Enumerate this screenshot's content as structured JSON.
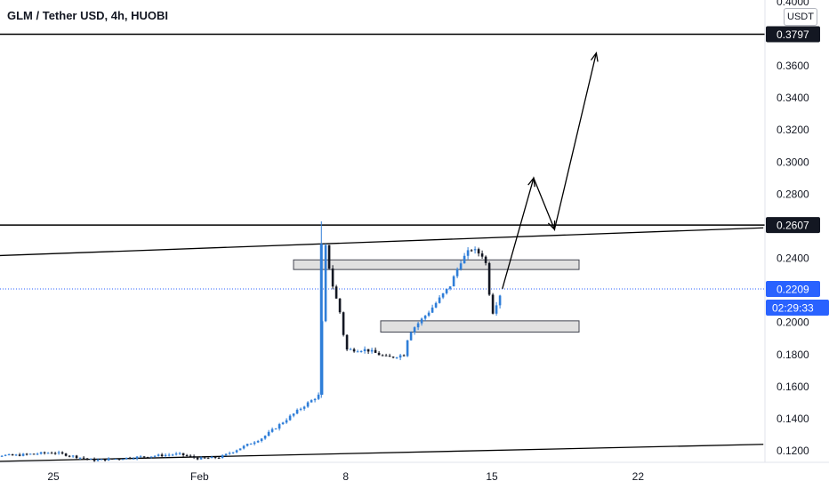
{
  "header": {
    "title": "GLM / Tether USD, 4h, HUOBI",
    "currency": "USDT"
  },
  "colors": {
    "up": "#2f7ed8",
    "down": "#131722",
    "accent": "#2962ff",
    "line": "#000000",
    "zone_fill": "#e0e0e0"
  },
  "chart_data": {
    "type": "candlestick",
    "title": "GLM / Tether USD, 4h, HUOBI",
    "y_axis": {
      "ticks": [
        "0.4000",
        "0.3600",
        "0.3400",
        "0.3200",
        "0.3000",
        "0.2800",
        "0.2400",
        "0.2000",
        "0.1800",
        "0.1600",
        "0.1400",
        "0.1200"
      ],
      "ylim": [
        0.11,
        0.4
      ]
    },
    "x_axis": {
      "ticks": [
        "25",
        "Feb",
        "8",
        "15",
        "22"
      ]
    },
    "price_labels": [
      {
        "value": 0.3797,
        "text": "0.3797",
        "style": "black"
      },
      {
        "value": 0.2607,
        "text": "0.2607",
        "style": "black"
      },
      {
        "value": 0.2209,
        "text": "0.2209",
        "style": "blue"
      }
    ],
    "countdown": "02:29:33",
    "last_price": 0.2209,
    "horizontal_lines": [
      0.3797,
      0.2607
    ],
    "zones": [
      {
        "name": "resistance",
        "low": 0.233,
        "high": 0.239
      },
      {
        "name": "support",
        "low": 0.194,
        "high": 0.201
      }
    ],
    "price_path": [
      [
        "2021-01-21",
        0.118
      ],
      [
        "2021-01-23",
        0.117
      ],
      [
        "2021-01-25",
        0.119
      ],
      [
        "2021-01-27",
        0.114
      ],
      [
        "2021-01-29",
        0.116
      ],
      [
        "2021-01-31",
        0.118
      ],
      [
        "2021-02-01",
        0.115
      ],
      [
        "2021-02-02",
        0.116
      ],
      [
        "2021-02-03",
        0.122
      ],
      [
        "2021-02-04",
        0.128
      ],
      [
        "2021-02-05",
        0.138
      ],
      [
        "2021-02-06",
        0.148
      ],
      [
        "2021-02-06T18:00",
        0.155
      ],
      [
        "2021-02-07",
        0.25
      ],
      [
        "2021-02-07T08:00",
        0.225
      ],
      [
        "2021-02-07T18:00",
        0.205
      ],
      [
        "2021-02-08",
        0.183
      ],
      [
        "2021-02-09",
        0.183
      ],
      [
        "2021-02-10",
        0.178
      ],
      [
        "2021-02-10T20:00",
        0.18
      ],
      [
        "2021-02-11",
        0.193
      ],
      [
        "2021-02-12",
        0.207
      ],
      [
        "2021-02-13",
        0.223
      ],
      [
        "2021-02-13T12:00",
        0.238
      ],
      [
        "2021-02-14",
        0.246
      ],
      [
        "2021-02-14T16:00",
        0.241
      ],
      [
        "2021-02-15",
        0.205
      ],
      [
        "2021-02-15T12:00",
        0.221
      ]
    ],
    "spike_high": 0.263,
    "projection": [
      [
        "2021-02-15T12:00",
        0.221
      ],
      [
        "2021-02-17",
        0.29
      ],
      [
        "2021-02-18",
        0.258
      ],
      [
        "2021-02-20",
        0.368
      ]
    ],
    "trendlines": [
      {
        "name": "upper",
        "points": [
          [
            "2021-01-21",
            0.241
          ],
          [
            "2021-02-28",
            0.259
          ]
        ]
      },
      {
        "name": "lower",
        "points": [
          [
            "2021-01-21",
            0.113
          ],
          [
            "2021-02-28",
            0.124
          ]
        ]
      }
    ]
  }
}
